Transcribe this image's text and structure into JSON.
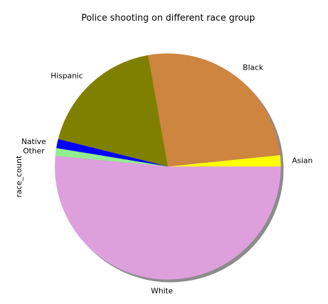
{
  "chart_data": {
    "type": "pie",
    "title": "Police shooting on different race group",
    "ylabel": "race_count",
    "start_angle_deg": 0,
    "direction": "counterclockwise",
    "shadow": true,
    "slices": [
      {
        "label": "Asian",
        "value": 0.016,
        "color": "#ffff00"
      },
      {
        "label": "Black",
        "value": 0.262,
        "color": "#cd853f"
      },
      {
        "label": "Hispanic",
        "value": 0.183,
        "color": "#808000"
      },
      {
        "label": "Native",
        "value": 0.013,
        "color": "#0000ff"
      },
      {
        "label": "Other",
        "value": 0.011,
        "color": "#90ee90"
      },
      {
        "label": "White",
        "value": 0.515,
        "color": "#dda0dd"
      }
    ]
  }
}
